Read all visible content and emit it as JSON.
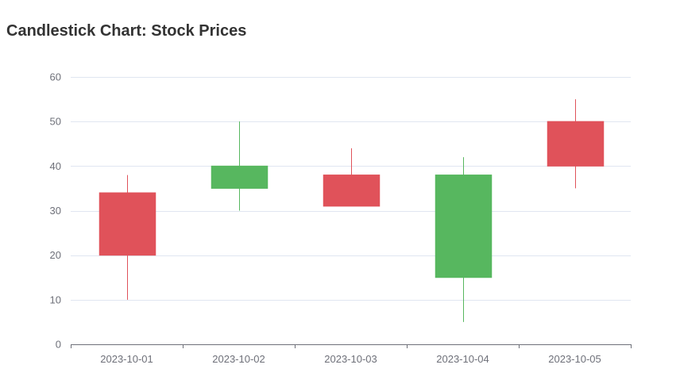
{
  "chart_data": {
    "type": "candlestick",
    "title": "Candlestick Chart: Stock Prices",
    "categories": [
      "2023-10-01",
      "2023-10-02",
      "2023-10-03",
      "2023-10-04",
      "2023-10-05"
    ],
    "series": [
      {
        "ohlc": [
          {
            "open": 20,
            "close": 34,
            "low": 10,
            "high": 38
          },
          {
            "open": 40,
            "close": 35,
            "low": 30,
            "high": 50
          },
          {
            "open": 31,
            "close": 38,
            "low": 31,
            "high": 44
          },
          {
            "open": 38,
            "close": 15,
            "low": 5,
            "high": 42
          },
          {
            "open": 40,
            "close": 50,
            "low": 35,
            "high": 55
          }
        ]
      }
    ],
    "ylim": [
      0,
      60
    ],
    "yticks": [
      0,
      10,
      20,
      30,
      40,
      50,
      60
    ],
    "ytick_labels": [
      "0",
      "10",
      "20",
      "30",
      "40",
      "50",
      "60"
    ],
    "grid": true,
    "legend": "none",
    "colors": {
      "up": "#e0525a",
      "down": "#57b75f",
      "grid": "#e0e6f1",
      "axis": "#6e7079",
      "title": "#333333"
    }
  }
}
